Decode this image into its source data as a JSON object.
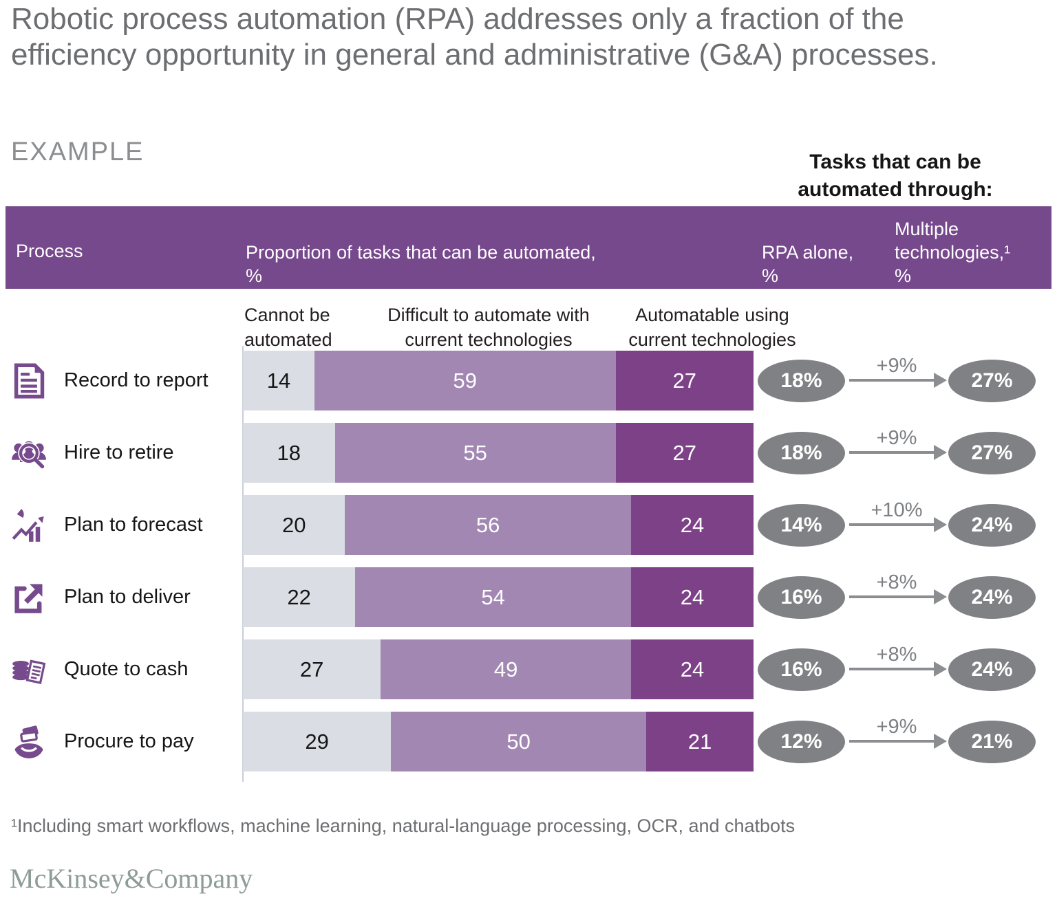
{
  "title": "Robotic process automation (RPA) addresses only a fraction of the efficiency opportunity in general and administrative (G&A) processes.",
  "example_label": "EXAMPLE",
  "right_header_line1": "Tasks that can be",
  "right_header_line2": "automated through:",
  "table_header": {
    "process": "Process",
    "proportion_line1": "Proportion of tasks that can be automated,",
    "proportion_line2": "%",
    "rpa_line1": "RPA alone,",
    "rpa_line2": "%",
    "multi_line1": "Multiple",
    "multi_line2": "technologies,¹",
    "multi_line3": "%"
  },
  "legend": {
    "cannot_line1": "Cannot be",
    "cannot_line2": "automated",
    "difficult_line1": "Difficult to automate with",
    "difficult_line2": "current technologies",
    "auto_line1": "Automatable using",
    "auto_line2": "current technologies"
  },
  "chart_data": {
    "type": "bar",
    "stacked": true,
    "orientation": "horizontal",
    "xlim": [
      0,
      100
    ],
    "categories": [
      "Record to report",
      "Hire to retire",
      "Plan to forecast",
      "Plan to deliver",
      "Quote to cash",
      "Procure to pay"
    ],
    "series": [
      {
        "name": "Cannot be automated",
        "color": "#dadde3",
        "values": [
          14,
          18,
          20,
          22,
          27,
          29
        ]
      },
      {
        "name": "Difficult to automate with current technologies",
        "color": "#a287b3",
        "values": [
          59,
          55,
          56,
          54,
          49,
          50
        ]
      },
      {
        "name": "Automatable using current technologies",
        "color": "#7c4187",
        "values": [
          27,
          27,
          24,
          24,
          24,
          21
        ]
      }
    ],
    "rpa_alone": [
      "18%",
      "18%",
      "14%",
      "16%",
      "16%",
      "12%"
    ],
    "delta": [
      "+9%",
      "+9%",
      "+10%",
      "+8%",
      "+8%",
      "+9%"
    ],
    "multiple_technologies": [
      "27%",
      "27%",
      "24%",
      "24%",
      "24%",
      "21%"
    ]
  },
  "icons": [
    "document-icon",
    "people-search-icon",
    "chart-growth-icon",
    "export-arrow-icon",
    "coins-receipt-icon",
    "hand-payment-icon"
  ],
  "footnote": "¹Including smart workflows, machine learning, natural-language processing, OCR, and chatbots",
  "logo": "McKinsey&Company",
  "colors": {
    "header-purple": "#76488c",
    "seg-gray": "#dadde3",
    "seg-mid": "#a287b3",
    "seg-dark": "#7c4187",
    "oval-gray": "#7f8184",
    "arrow-gray": "#8b8d90",
    "icon-purple": "#764a8c",
    "title-gray": "#6d6e71",
    "logo-green": "#8d9c94",
    "axis-line": "#c7cfd9"
  }
}
